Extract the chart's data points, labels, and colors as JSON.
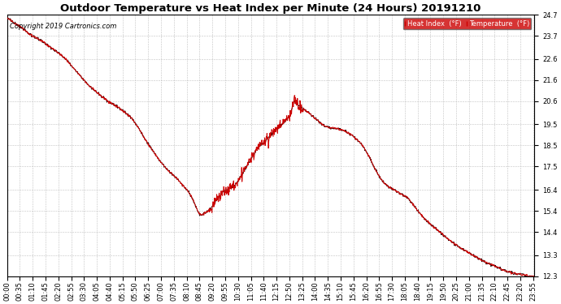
{
  "title": "Outdoor Temperature vs Heat Index per Minute (24 Hours) 20191210",
  "copyright": "Copyright 2019 Cartronics.com",
  "legend_heat_index": "Heat Index  (°F)",
  "legend_temperature": "Temperature  (°F)",
  "heat_index_color": "#CC0000",
  "temperature_color": "#440000",
  "background_color": "#FFFFFF",
  "grid_color": "#BBBBBB",
  "ylim_min": 12.3,
  "ylim_max": 24.7,
  "ytick_values": [
    12.3,
    13.3,
    14.4,
    15.4,
    16.4,
    17.5,
    18.5,
    19.5,
    20.6,
    21.6,
    22.6,
    23.7,
    24.7
  ],
  "title_fontsize": 9.5,
  "copyright_fontsize": 6,
  "tick_fontsize": 6
}
